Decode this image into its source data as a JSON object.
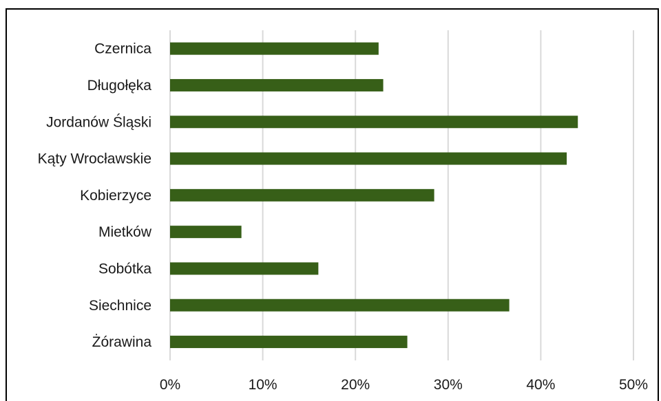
{
  "chart_data": {
    "type": "bar",
    "orientation": "horizontal",
    "categories": [
      "Czernica",
      "Długołęka",
      "Jordanów Śląski",
      "Kąty Wrocławskie",
      "Kobierzyce",
      "Mietków",
      "Sobótka",
      "Siechnice",
      "Żórawina"
    ],
    "values": [
      22.5,
      23.0,
      44.0,
      42.8,
      28.5,
      7.7,
      16.0,
      36.6,
      25.6
    ],
    "xticks": [
      "0%",
      "10%",
      "20%",
      "30%",
      "40%",
      "50%"
    ],
    "xlim": [
      0,
      50
    ],
    "grid": true,
    "colors": {
      "bar": "#375f18",
      "grid": "#d9d9d9",
      "border": "#000000"
    }
  }
}
